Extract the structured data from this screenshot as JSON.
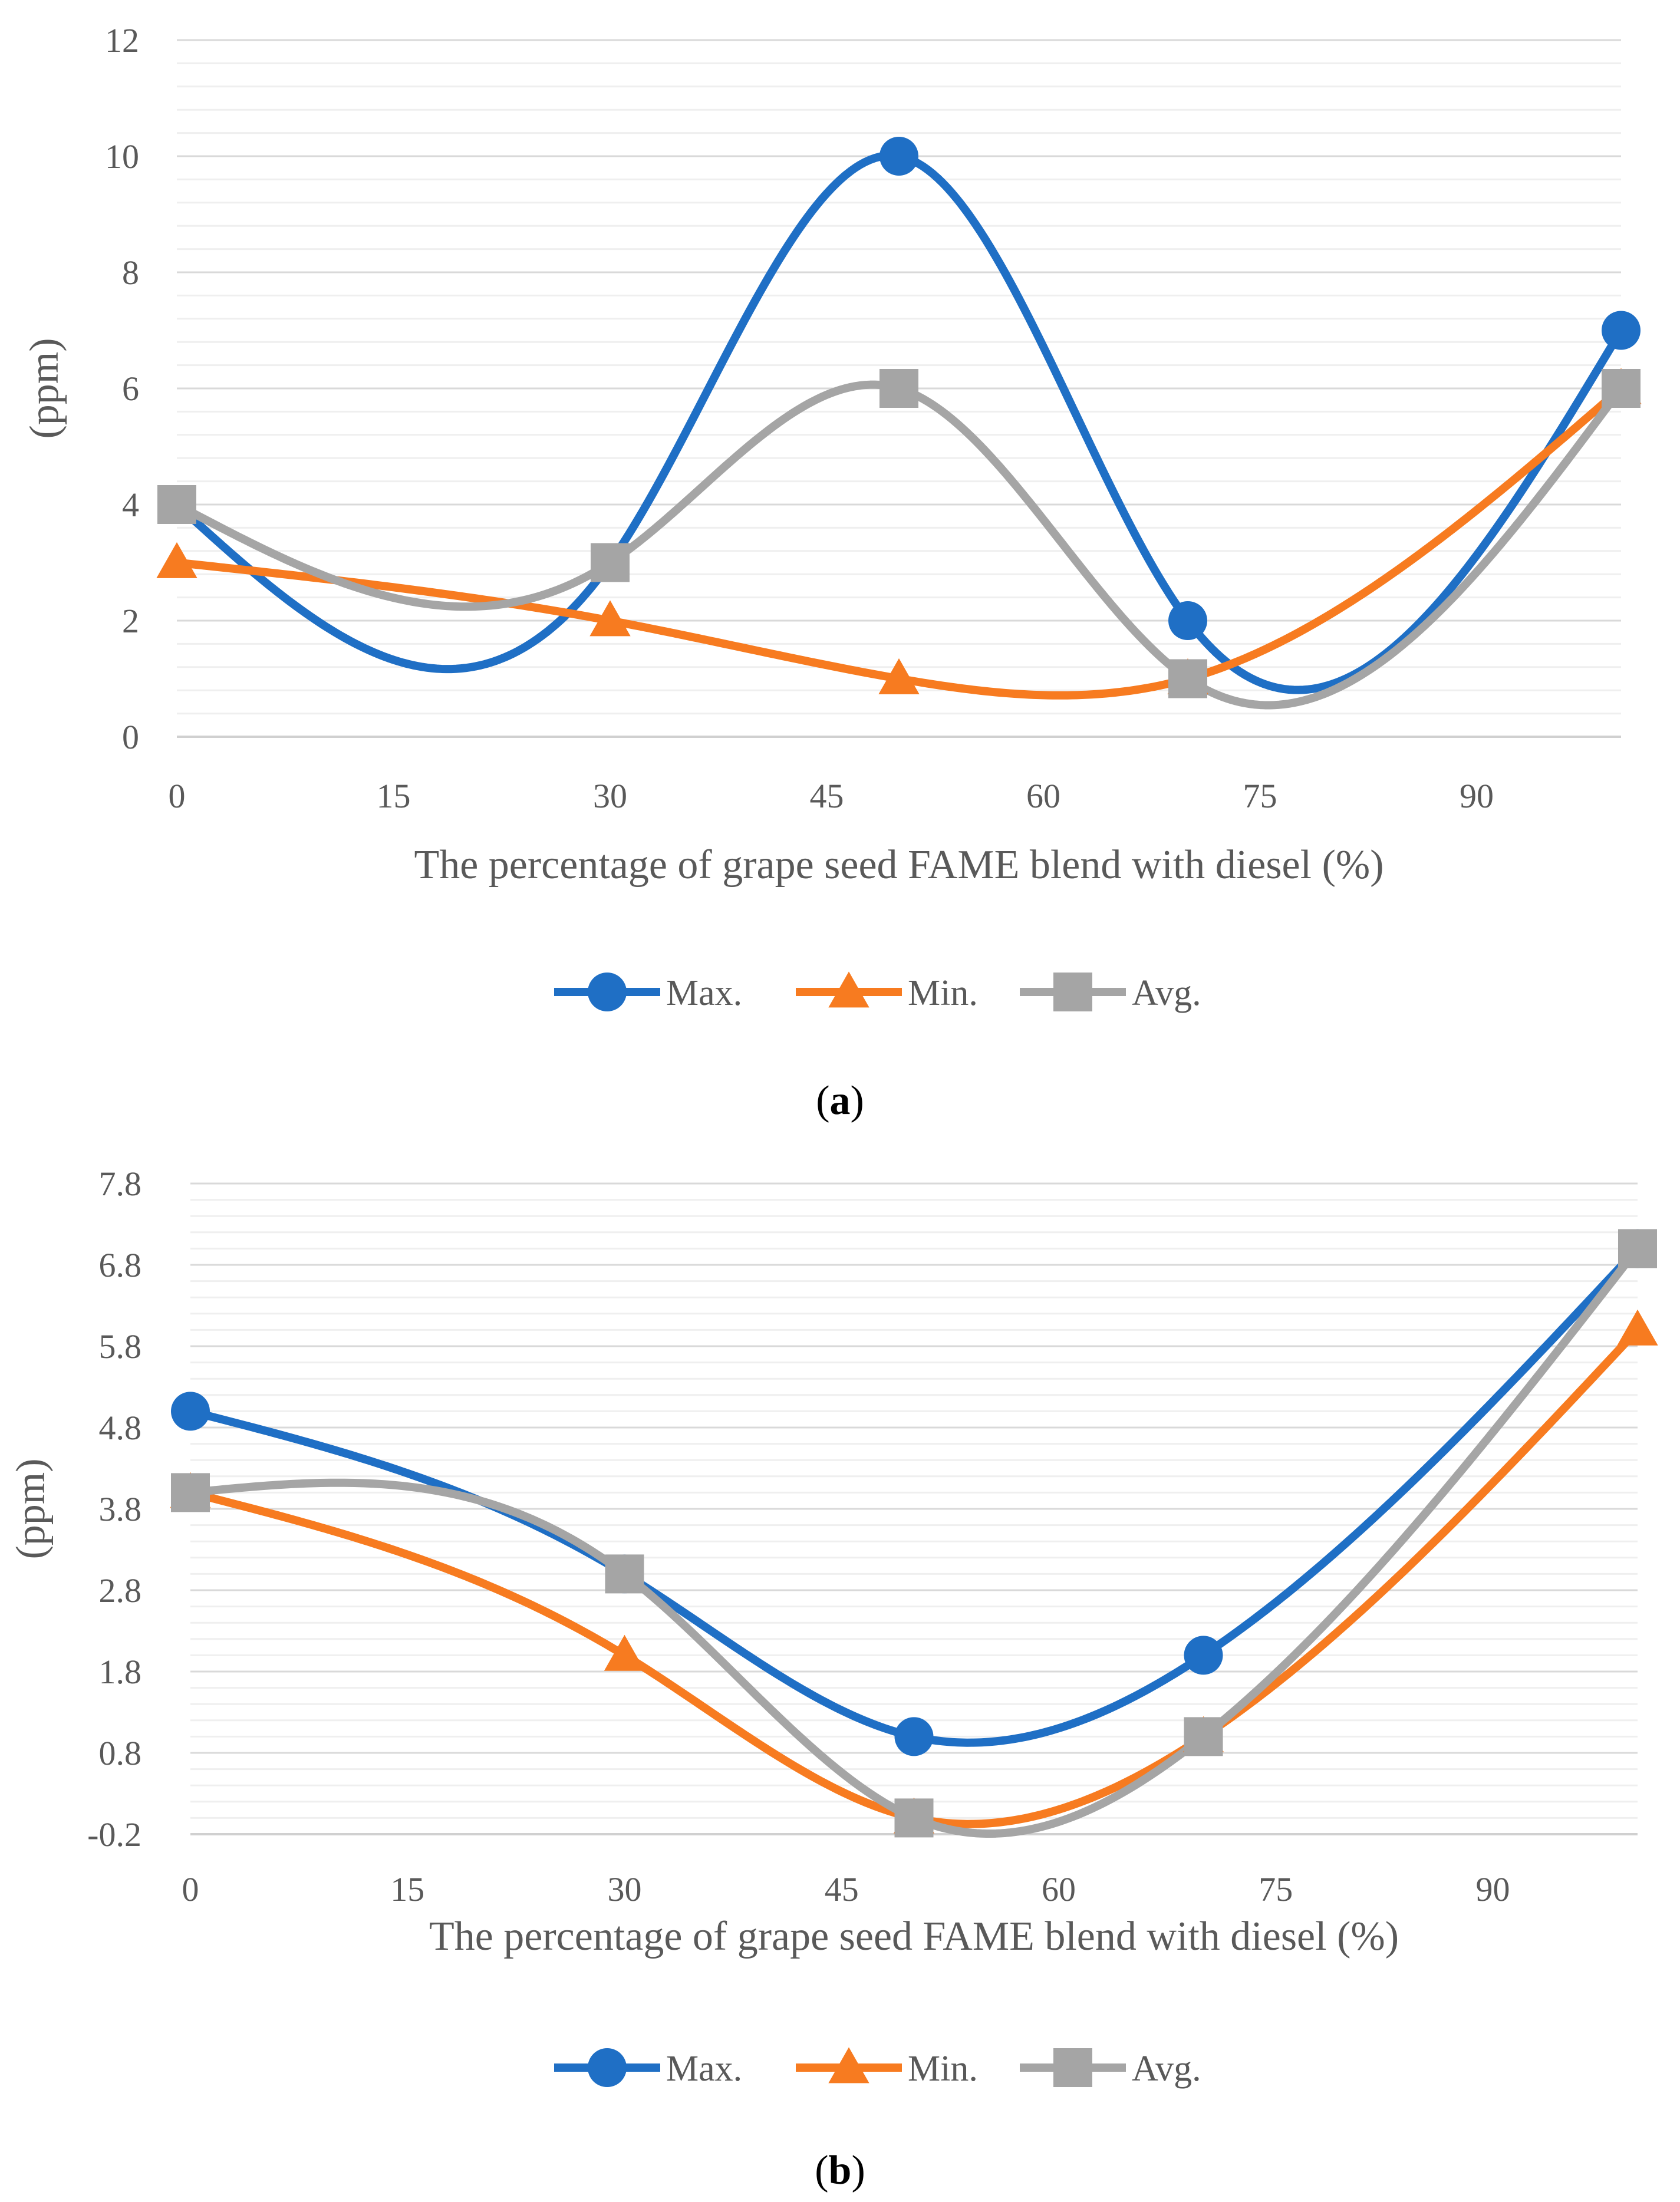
{
  "chart_data": [
    {
      "panel": "a",
      "type": "line",
      "smooth": true,
      "title": "",
      "xlabel": "The percentage of grape seed FAME blend with diesel (%)",
      "ylabel": "(ppm)",
      "xlim": [
        0,
        100
      ],
      "ylim": [
        0,
        12
      ],
      "xticks": [
        0,
        15,
        30,
        45,
        60,
        75,
        90
      ],
      "xtick_labels": [
        "0",
        "15",
        "30",
        "45",
        "60",
        "75",
        "90"
      ],
      "yticks": [
        0,
        2,
        4,
        6,
        8,
        10,
        12
      ],
      "ytick_labels": [
        "0",
        "2",
        "4",
        "6",
        "8",
        "10",
        "12"
      ],
      "grid": true,
      "legend_position": "bottom",
      "x": [
        0,
        30,
        50,
        70,
        100
      ],
      "series": [
        {
          "name": "Max.",
          "marker": "circle",
          "color": "#1f6fc5",
          "values": [
            4,
            3,
            10,
            2,
            7
          ]
        },
        {
          "name": "Min.",
          "marker": "triangle",
          "color": "#f77b20",
          "values": [
            3,
            2,
            1,
            1,
            6
          ]
        },
        {
          "name": "Avg.",
          "marker": "square",
          "color": "#a5a5a5",
          "values": [
            4,
            3,
            6,
            1,
            6
          ]
        }
      ]
    },
    {
      "panel": "b",
      "type": "line",
      "smooth": true,
      "title": "",
      "xlabel": "The percentage of grape seed FAME blend with diesel (%)",
      "ylabel": "(ppm)",
      "xlim": [
        0,
        100
      ],
      "ylim": [
        -0.2,
        7.8
      ],
      "xticks": [
        0,
        15,
        30,
        45,
        60,
        75,
        90
      ],
      "xtick_labels": [
        "0",
        "15",
        "30",
        "45",
        "60",
        "75",
        "90"
      ],
      "yticks": [
        -0.2,
        0.8,
        1.8,
        2.8,
        3.8,
        4.8,
        5.8,
        6.8,
        7.8
      ],
      "ytick_labels": [
        "-0.2",
        "0.8",
        "1.8",
        "2.8",
        "3.8",
        "4.8",
        "5.8",
        "6.8",
        "7.8"
      ],
      "grid": true,
      "legend_position": "bottom",
      "x": [
        0,
        30,
        50,
        70,
        100
      ],
      "series": [
        {
          "name": "Max.",
          "marker": "circle",
          "color": "#1f6fc5",
          "values": [
            5,
            3,
            1,
            2,
            7
          ]
        },
        {
          "name": "Min.",
          "marker": "triangle",
          "color": "#f77b20",
          "values": [
            4,
            2,
            0,
            1,
            6
          ]
        },
        {
          "name": "Avg.",
          "marker": "square",
          "color": "#a5a5a5",
          "values": [
            4,
            3,
            0,
            1,
            7
          ]
        }
      ]
    }
  ],
  "panel_labels": [
    {
      "open": "(",
      "letter": "a",
      "close": ")"
    },
    {
      "open": "(",
      "letter": "b",
      "close": ")"
    }
  ]
}
